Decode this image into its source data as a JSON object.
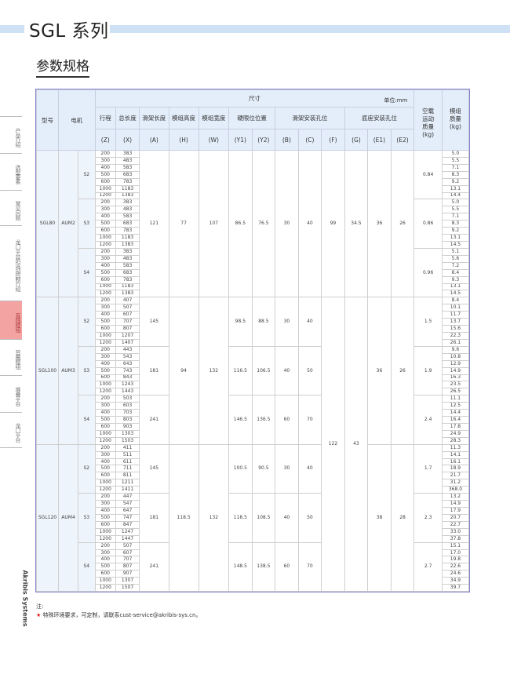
{
  "header": {
    "title": "SGL 系列",
    "subtitle": "参数规格"
  },
  "sidebar": {
    "items": [
      "产品介绍",
      "选型要素",
      "常见问题",
      "龙门平台的运动控制介绍",
      "直线模组",
      "音圈模组",
      "堆叠平台",
      "龙门平台"
    ],
    "active": "直线模组"
  },
  "brand": "Akribis Systems",
  "table": {
    "headers": {
      "model": "型号",
      "motor": "电机",
      "dimensions": "尺寸",
      "unit": "单位:mm",
      "stroke": "行程",
      "total_length": "总长度",
      "carriage_length": "滑架长度",
      "module_height": "模组高度",
      "module_width": "模组宽度",
      "hard_limit": "硬限位位置",
      "carriage_holes": "滑架安装孔位",
      "base_holes": "底座安装孔位",
      "load_mass": "空载运动质量(kg)",
      "module_mass": "模组质量(kg)",
      "codes": [
        "(Z)",
        "(X)",
        "(A)",
        "(H)",
        "(W)",
        "(Y1)",
        "(Y2)",
        "(B)",
        "(C)",
        "(F)",
        "(G)",
        "(E1)",
        "(E2)"
      ],
      "load_mass_unit": "(kg)"
    },
    "models": [
      {
        "model": "SGL80",
        "motor": "AUM2",
        "A": "121",
        "H": "77",
        "W": "107",
        "Y1": "86.5",
        "Y2": "76.5",
        "B": "30",
        "C": "40",
        "F": "99",
        "G": "34.5",
        "E1": "36",
        "E2": "26",
        "groups": [
          {
            "s": "S2",
            "load": "0.84",
            "Z": [
              "200",
              "300",
              "400",
              "500",
              "600",
              "1000",
              "1200"
            ],
            "X": [
              "383",
              "483",
              "583",
              "683",
              "783",
              "1183",
              "1383"
            ],
            "mass": [
              "5.0",
              "5.5",
              "7.1",
              "8.3",
              "9.2",
              "13.1",
              "14.4"
            ]
          },
          {
            "s": "S3",
            "load": "0.86",
            "Z": [
              "200",
              "300",
              "400",
              "500",
              "600",
              "1000",
              "1200"
            ],
            "X": [
              "383",
              "483",
              "583",
              "683",
              "783",
              "1183",
              "1383"
            ],
            "mass": [
              "5.0",
              "5.5",
              "7.1",
              "8.3",
              "9.2",
              "13.1",
              "14.5"
            ]
          },
          {
            "s": "S4",
            "load": "0.96",
            "Z": [
              "200",
              "300",
              "400",
              "500",
              "600",
              "1000",
              "1200"
            ],
            "X": [
              "383",
              "483",
              "583",
              "683",
              "783",
              "1183",
              "1383"
            ],
            "mass": [
              "5.1",
              "5.6",
              "7.2",
              "8.4",
              "9.3",
              "13.1",
              "14.5"
            ]
          }
        ]
      },
      {
        "model": "SGL100",
        "motor": "AUM3",
        "H": "94",
        "W": "132",
        "F": "122",
        "G": "43",
        "E1": "36",
        "E2": "26",
        "groups": [
          {
            "s": "S2",
            "A": "145",
            "Y1": "98.5",
            "Y2": "88.5",
            "B": "30",
            "C": "40",
            "load": "1.5",
            "Z": [
              "200",
              "300",
              "400",
              "500",
              "600",
              "1000",
              "1200"
            ],
            "X": [
              "407",
              "507",
              "607",
              "707",
              "807",
              "1207",
              "1407"
            ],
            "mass": [
              "8.4",
              "10.1",
              "11.7",
              "13.7",
              "15.6",
              "22.3",
              "26.1"
            ]
          },
          {
            "s": "S3",
            "A": "181",
            "Y1": "116.5",
            "Y2": "106.5",
            "B": "40",
            "C": "50",
            "load": "1.9",
            "Z": [
              "200",
              "300",
              "400",
              "500",
              "600",
              "1000",
              "1200"
            ],
            "X": [
              "443",
              "543",
              "643",
              "743",
              "843",
              "1243",
              "1443"
            ],
            "mass": [
              "9.6",
              "10.8",
              "12.9",
              "14.9",
              "16.3",
              "23.5",
              "26.5"
            ]
          },
          {
            "s": "S4",
            "A": "241",
            "Y1": "146.5",
            "Y2": "136.5",
            "B": "60",
            "C": "70",
            "load": "2.4",
            "Z": [
              "200",
              "300",
              "400",
              "500",
              "600",
              "1000",
              "1200"
            ],
            "X": [
              "503",
              "603",
              "703",
              "803",
              "903",
              "1303",
              "1503"
            ],
            "mass": [
              "11.1",
              "12.5",
              "14.4",
              "16.4",
              "17.8",
              "24.9",
              "28.3"
            ]
          }
        ]
      },
      {
        "model": "SGL120",
        "motor": "AUM4",
        "H": "118.5",
        "W": "132",
        "F": "122",
        "G": "43",
        "E1": "38",
        "E2": "28",
        "groups": [
          {
            "s": "S2",
            "A": "145",
            "Y1": "100.5",
            "Y2": "90.5",
            "B": "30",
            "C": "40",
            "load": "1.7",
            "Z": [
              "200",
              "300",
              "400",
              "500",
              "600",
              "1000",
              "1200"
            ],
            "X": [
              "411",
              "511",
              "611",
              "711",
              "811",
              "1211",
              "1411"
            ],
            "mass": [
              "11.3",
              "14.1",
              "16.1",
              "18.9",
              "21.7",
              "31.2",
              "368.0"
            ]
          },
          {
            "s": "S3",
            "A": "181",
            "Y1": "118.5",
            "Y2": "108.5",
            "B": "40",
            "C": "50",
            "load": "2.3",
            "Z": [
              "200",
              "300",
              "400",
              "500",
              "600",
              "1000",
              "1200"
            ],
            "X": [
              "447",
              "547",
              "647",
              "747",
              "847",
              "1247",
              "1447"
            ],
            "mass": [
              "13.2",
              "14.9",
              "17.9",
              "20.7",
              "22.7",
              "33.0",
              "37.8"
            ]
          },
          {
            "s": "S4",
            "A": "241",
            "Y1": "148.5",
            "Y2": "138.5",
            "B": "60",
            "C": "70",
            "load": "2.7",
            "Z": [
              "200",
              "300",
              "400",
              "500",
              "600",
              "1000",
              "1200"
            ],
            "X": [
              "507",
              "607",
              "707",
              "807",
              "907",
              "1307",
              "1507"
            ],
            "mass": [
              "15.1",
              "17.0",
              "19.8",
              "22.6",
              "24.6",
              "34.9",
              "39.7"
            ]
          }
        ]
      }
    ]
  },
  "notes": {
    "label": "注:",
    "items": [
      "特殊环境要求，可定制，请联系cust-service@akribis-sys.cn。"
    ],
    "star_color": "#e22222"
  },
  "colors": {
    "accent_band": "#cfe2f5",
    "header_bg": "#e4eefa",
    "table_border": "#8282c8",
    "active_sidebar": "#f4a3a3"
  }
}
